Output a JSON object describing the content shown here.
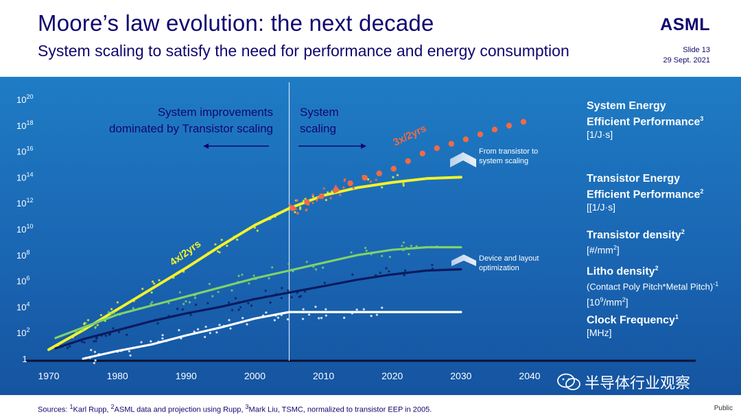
{
  "header": {
    "title": "Moore’s law evolution: the next decade",
    "subtitle": "System scaling to satisfy the need for performance and energy consumption",
    "logo": "ASML",
    "slide": "Slide 13",
    "date": "29 Sept. 2021"
  },
  "annotations": {
    "left_line1": "System improvements",
    "left_line2": "dominated by Transistor scaling",
    "right_line1": "System",
    "right_line2": "scaling",
    "rate_transistor": "4x/2yrs",
    "rate_system": "3x/2yrs",
    "note1_line1": "From transistor to",
    "note1_line2": "system scaling",
    "note2_line1": "Device and layout",
    "note2_line2": "optimization"
  },
  "legend": [
    {
      "title": "System Energy",
      "title2": "Efficient Performance",
      "sup": "3",
      "unit": "[1/J·s]"
    },
    {
      "title": "Transistor Energy",
      "title2": "Efficient Performance",
      "sup": "2",
      "unit": "[[1/J·s]"
    },
    {
      "title": "Transistor density",
      "sup": "2",
      "unit": "[#/mm",
      "unit_sup": "2",
      "unit_end": "]"
    },
    {
      "title": "Litho density",
      "sup": "2",
      "unit_a": "(Contact Poly Pitch*Metal Pitch)",
      "unit_a_sup": "-1",
      "unit": "[10",
      "unit_mid_sup": "9",
      "unit_mid": "/mm",
      "unit_sup": "2",
      "unit_end": "]"
    },
    {
      "title": "Clock Frequency",
      "sup": "1",
      "unit": "[MHz]"
    }
  ],
  "footer": {
    "sources_prefix": "Sources: ",
    "s1": "1",
    "sources1": "Karl Rupp, ",
    "s2": "2",
    "sources2": "ASML data and projection using Rupp, ",
    "s3": "3",
    "sources3": "Mark Liu, TSMC, normalized to transistor EEP in 2005.",
    "public": "Public"
  },
  "watermark": "半导体行业观察",
  "colors": {
    "system_eep": "#f26a45",
    "transistor_eep": "#f2f22c",
    "transistor_density": "#7fd26b",
    "litho_density": "#0b1a5e",
    "clock": "#ffffff",
    "brand": "#10066f"
  },
  "chart_data": {
    "type": "scatter",
    "title": "Moore’s law evolution: the next decade",
    "xlabel": "",
    "ylabel": "",
    "xlim": [
      1970,
      2040
    ],
    "ylim_log10": [
      0,
      20
    ],
    "x_ticks": [
      1970,
      1980,
      1990,
      2000,
      2010,
      2020,
      2030,
      2040
    ],
    "y_tick_exponents": [
      0,
      2,
      4,
      6,
      8,
      10,
      12,
      14,
      16,
      18,
      20
    ],
    "y_tick_base": "10",
    "y_tick_one": "1",
    "divider_year": 2005,
    "series": [
      {
        "name": "Transistor Energy Efficient Performance",
        "color_key": "transistor_eep",
        "x": [
          1970,
          1975,
          1980,
          1985,
          1990,
          1995,
          2000,
          2005,
          2010,
          2015,
          2020,
          2025,
          2030
        ],
        "log10": [
          0.7,
          2.2,
          3.8,
          5.4,
          7.0,
          8.7,
          10.3,
          11.6,
          12.6,
          13.2,
          13.6,
          13.9,
          14.0
        ]
      },
      {
        "name": "System Energy Efficient Performance",
        "color_key": "system_eep",
        "x": [
          2005,
          2010,
          2015,
          2020,
          2025,
          2030,
          2035,
          2040
        ],
        "log10": [
          11.5,
          12.6,
          13.8,
          14.6,
          16.0,
          16.8,
          17.7,
          18.4
        ]
      },
      {
        "name": "Transistor density",
        "color_key": "transistor_density",
        "x": [
          1971,
          1975,
          1980,
          1985,
          1990,
          1995,
          2000,
          2005,
          2010,
          2015,
          2020,
          2025,
          2030
        ],
        "log10": [
          1.6,
          2.4,
          3.4,
          4.1,
          4.8,
          5.5,
          6.2,
          6.8,
          7.4,
          8.0,
          8.4,
          8.6,
          8.6
        ]
      },
      {
        "name": "Litho density",
        "color_key": "litho_density",
        "x": [
          1971,
          1975,
          1980,
          1985,
          1990,
          1995,
          2000,
          2005,
          2010,
          2015,
          2020,
          2025,
          2030
        ],
        "log10": [
          0.8,
          1.5,
          2.2,
          2.9,
          3.5,
          4.0,
          4.6,
          5.1,
          5.6,
          6.1,
          6.5,
          6.8,
          6.9
        ]
      },
      {
        "name": "Clock Frequency",
        "color_key": "clock",
        "x": [
          1975,
          1980,
          1985,
          1990,
          1995,
          2000,
          2005,
          2010,
          2020,
          2030
        ],
        "log10": [
          0.0,
          0.6,
          1.1,
          1.8,
          2.4,
          3.1,
          3.6,
          3.6,
          3.6,
          3.6
        ]
      }
    ]
  }
}
